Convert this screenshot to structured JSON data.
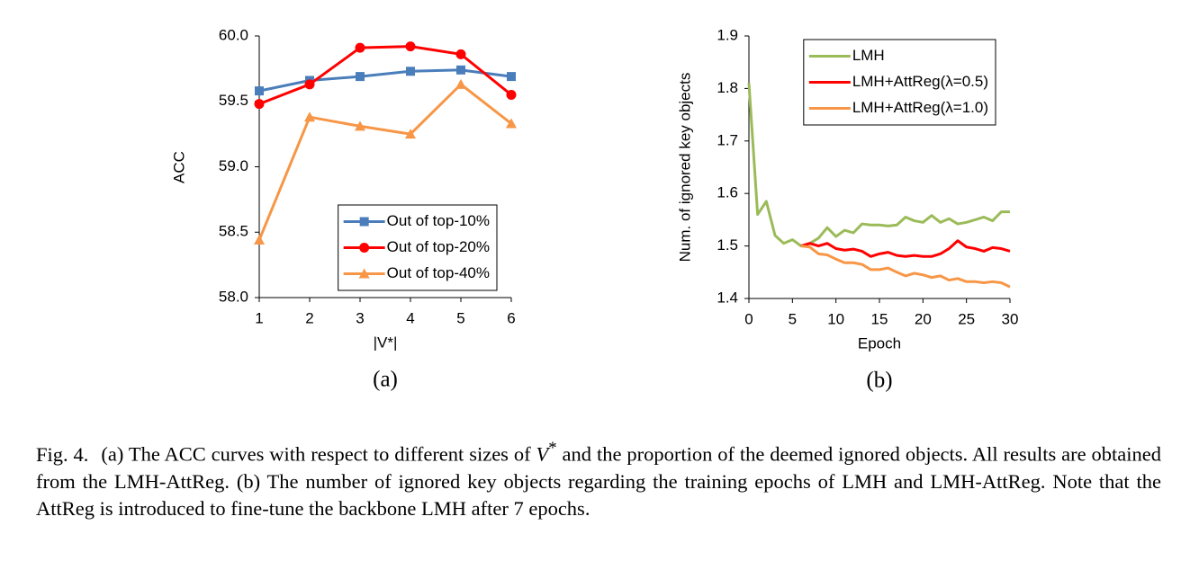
{
  "chart_data": [
    {
      "type": "line",
      "sublabel": "(a)",
      "xlabel": "|V*|",
      "ylabel": "ACC",
      "x": [
        1,
        2,
        3,
        4,
        5,
        6
      ],
      "xlim": [
        1,
        6
      ],
      "xticks": [
        1,
        2,
        3,
        4,
        5,
        6
      ],
      "ylim": [
        58,
        60
      ],
      "yticks": [
        {
          "value": 58,
          "label": "58.0"
        },
        {
          "value": 58.5,
          "label": "58.5"
        },
        {
          "value": 59,
          "label": "59.0"
        },
        {
          "value": 59.5,
          "label": "59.5"
        },
        {
          "value": 60,
          "label": "60.0"
        }
      ],
      "legend": "lower right",
      "grid": false,
      "series": [
        {
          "name": "Out of top-10%",
          "color": "#4a7ebb",
          "marker": "square",
          "values": [
            59.58,
            59.66,
            59.69,
            59.73,
            59.74,
            59.69
          ]
        },
        {
          "name": "Out of top-20%",
          "color": "#ff0000",
          "marker": "circle",
          "values": [
            59.48,
            59.63,
            59.91,
            59.92,
            59.86,
            59.55
          ]
        },
        {
          "name": "Out of top-40%",
          "color": "#f79646",
          "marker": "triangle",
          "values": [
            58.44,
            59.38,
            59.31,
            59.25,
            59.63,
            59.33
          ]
        }
      ]
    },
    {
      "type": "line",
      "sublabel": "(b)",
      "xlabel": "Epoch",
      "ylabel": "Num. of ignored key objects",
      "x": [
        0,
        1,
        2,
        3,
        4,
        5,
        6,
        7,
        8,
        9,
        10,
        11,
        12,
        13,
        14,
        15,
        16,
        17,
        18,
        19,
        20,
        21,
        22,
        23,
        24,
        25,
        26,
        27,
        28,
        29,
        30
      ],
      "xlim": [
        0,
        30
      ],
      "xticks": [
        0,
        5,
        10,
        15,
        20,
        25,
        30
      ],
      "ylim": [
        1.4,
        1.9
      ],
      "yticks": [
        1.4,
        1.5,
        1.6,
        1.7,
        1.8,
        1.9
      ],
      "legend": "upper right",
      "grid": false,
      "series": [
        {
          "name": "LMH",
          "color": "#9bbb59",
          "values": [
            1.81,
            1.56,
            1.585,
            1.52,
            1.505,
            1.512,
            1.5,
            1.505,
            1.515,
            1.535,
            1.518,
            1.53,
            1.525,
            1.542,
            1.54,
            1.54,
            1.538,
            1.54,
            1.555,
            1.548,
            1.545,
            1.558,
            1.545,
            1.552,
            1.542,
            1.545,
            1.55,
            1.555,
            1.548,
            1.565,
            1.565
          ]
        },
        {
          "name": "LMH+AttReg(λ=0.5)",
          "color": "#ff0000",
          "values": [
            null,
            null,
            null,
            null,
            null,
            null,
            1.5,
            1.505,
            1.5,
            1.505,
            1.495,
            1.492,
            1.494,
            1.49,
            1.48,
            1.485,
            1.488,
            1.482,
            1.48,
            1.482,
            1.48,
            1.48,
            1.485,
            1.495,
            1.51,
            1.498,
            1.495,
            1.49,
            1.497,
            1.495,
            1.49
          ]
        },
        {
          "name": "LMH+AttReg(λ=1.0)",
          "color": "#f79646",
          "values": [
            null,
            null,
            null,
            null,
            null,
            null,
            1.5,
            1.498,
            1.485,
            1.483,
            1.475,
            1.468,
            1.468,
            1.465,
            1.455,
            1.455,
            1.458,
            1.45,
            1.443,
            1.448,
            1.445,
            1.44,
            1.443,
            1.435,
            1.438,
            1.432,
            1.432,
            1.43,
            1.432,
            1.43,
            1.422
          ]
        }
      ]
    }
  ],
  "caption": {
    "label": "Fig. 4.",
    "parts": [
      "(a) The ACC curves with respect to different sizes of ",
      "V",
      "*",
      " and the proportion of the deemed ignored objects. All results are obtained from the LMH-AttReg. (b) The number of ignored key objects regarding the training epochs of LMH and LMH-AttReg. Note that the AttReg is introduced to fine-tune the backbone LMH after 7 epochs."
    ]
  }
}
